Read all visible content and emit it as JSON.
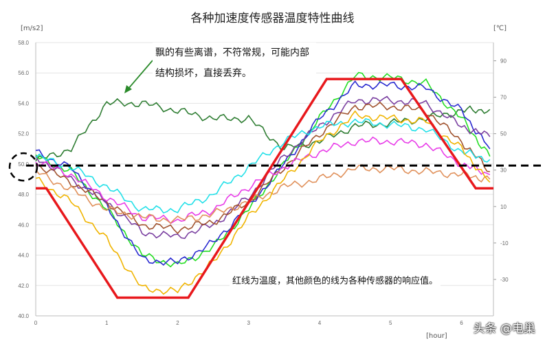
{
  "chart_data": {
    "type": "line",
    "title": "各种加速度传感器温度特性曲线",
    "ylabel_left": "[m/s2]",
    "ylabel_right": "[℃]",
    "xlabel": "[hour]",
    "xlim": [
      0,
      6.45
    ],
    "ylim_left": [
      40,
      58
    ],
    "ylim_right": [
      -50,
      100
    ],
    "x_ticks": [
      "0",
      "1",
      "2",
      "3",
      "4",
      "5",
      "6"
    ],
    "y_left_ticks": [
      "40.0",
      "42.0",
      "44.0",
      "46.0",
      "48.0",
      "50.0",
      "52.0",
      "54.0",
      "56.0",
      "58.0"
    ],
    "y_right_ticks": [
      "-30",
      "-10",
      "10",
      "30",
      "50",
      "70",
      "90"
    ],
    "grid": "horizontal",
    "x": [
      0,
      0.5,
      1,
      1.5,
      2,
      2.5,
      3,
      3.5,
      4,
      4.5,
      5,
      5.5,
      6,
      6.4
    ],
    "temperature": {
      "axis": "right",
      "color": "#e8181c",
      "x": [
        0,
        0.15,
        1.15,
        2.15,
        4.1,
        5.15,
        6.2,
        6.45
      ],
      "values": [
        20,
        20,
        -40,
        -40,
        80,
        80,
        20,
        20
      ]
    },
    "series": [
      {
        "color": "#2e7d32",
        "values": [
          50.2,
          51.0,
          54.0,
          54.0,
          53.5,
          53.0,
          53.0,
          51.0,
          51.5,
          52.5,
          52.7,
          53.0,
          53.5,
          53.6
        ]
      },
      {
        "color": "#22dd22",
        "values": [
          50.5,
          49.5,
          47.0,
          44.0,
          43.3,
          44.5,
          47.0,
          50.0,
          53.0,
          55.8,
          55.7,
          55.3,
          53.0,
          50.5
        ]
      },
      {
        "color": "#2a2ad0",
        "values": [
          50.8,
          49.7,
          47.2,
          43.7,
          43.5,
          44.8,
          47.2,
          50.0,
          53.0,
          55.2,
          55.2,
          55.0,
          53.5,
          51.0
        ]
      },
      {
        "color": "#7a3fa0",
        "values": [
          50.5,
          49.0,
          47.5,
          45.5,
          45.2,
          46.0,
          47.8,
          50.5,
          52.5,
          54.2,
          54.2,
          54.0,
          52.5,
          51.8
        ]
      },
      {
        "color": "#a0522d",
        "values": [
          50.0,
          48.8,
          47.5,
          46.0,
          45.7,
          46.2,
          47.5,
          49.8,
          52.0,
          53.8,
          53.8,
          53.5,
          51.5,
          49.5
        ]
      },
      {
        "color": "#e83ce8",
        "values": [
          50.2,
          49.3,
          47.8,
          46.5,
          46.3,
          47.0,
          48.5,
          49.8,
          50.8,
          51.5,
          51.5,
          51.3,
          50.0,
          49.3
        ]
      },
      {
        "color": "#22e0e8",
        "values": [
          50.5,
          49.8,
          48.5,
          47.0,
          47.0,
          48.0,
          49.8,
          51.5,
          52.5,
          52.8,
          52.6,
          52.3,
          50.8,
          50.3
        ]
      },
      {
        "color": "#e0905a",
        "values": [
          49.5,
          48.3,
          47.0,
          46.5,
          46.3,
          46.7,
          47.5,
          48.5,
          49.0,
          49.7,
          49.7,
          49.5,
          49.3,
          49.0
        ]
      },
      {
        "color": "#f0b400",
        "values": [
          49.0,
          47.5,
          45.0,
          41.8,
          41.6,
          43.5,
          46.5,
          49.0,
          51.5,
          53.2,
          53.0,
          52.8,
          51.0,
          48.8
        ]
      }
    ],
    "reference_line": {
      "value": 49.9,
      "style": "dashed",
      "color": "#000000"
    },
    "annotations": {
      "fault_note": "飘的有些离谱，不符常规，可能内部结构损坏，直接丢弃。",
      "legend_note": "红线为温度，其他颜色的线为各种传感器的响应值。"
    }
  },
  "watermark": "头条 @电巢"
}
